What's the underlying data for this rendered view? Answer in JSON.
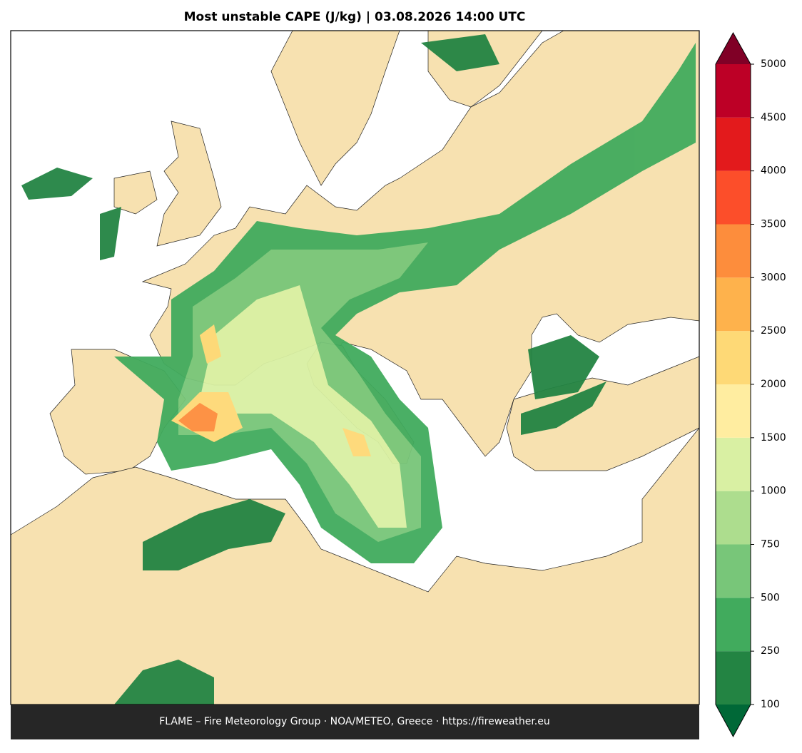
{
  "chart_data": {
    "type": "map",
    "title": "Most unstable CAPE (J/kg)  |  03.08.2026 14:00 UTC",
    "footer": "FLAME – Fire Meteorology Group · NOA/METEO, Greece · https://fireweather.eu",
    "colorbar": {
      "ticks": [
        100,
        250,
        500,
        750,
        1000,
        1500,
        2000,
        2500,
        3000,
        3500,
        4000,
        4500,
        5000
      ],
      "colors": [
        "#238443",
        "#41ab5d",
        "#78c679",
        "#addd8e",
        "#d9f0a3",
        "#ffeda0",
        "#fed976",
        "#feb24c",
        "#fd8d3c",
        "#fc4e2a",
        "#e31a1c",
        "#bd0026"
      ],
      "under_color": "#006837",
      "over_color": "#800026"
    }
  }
}
